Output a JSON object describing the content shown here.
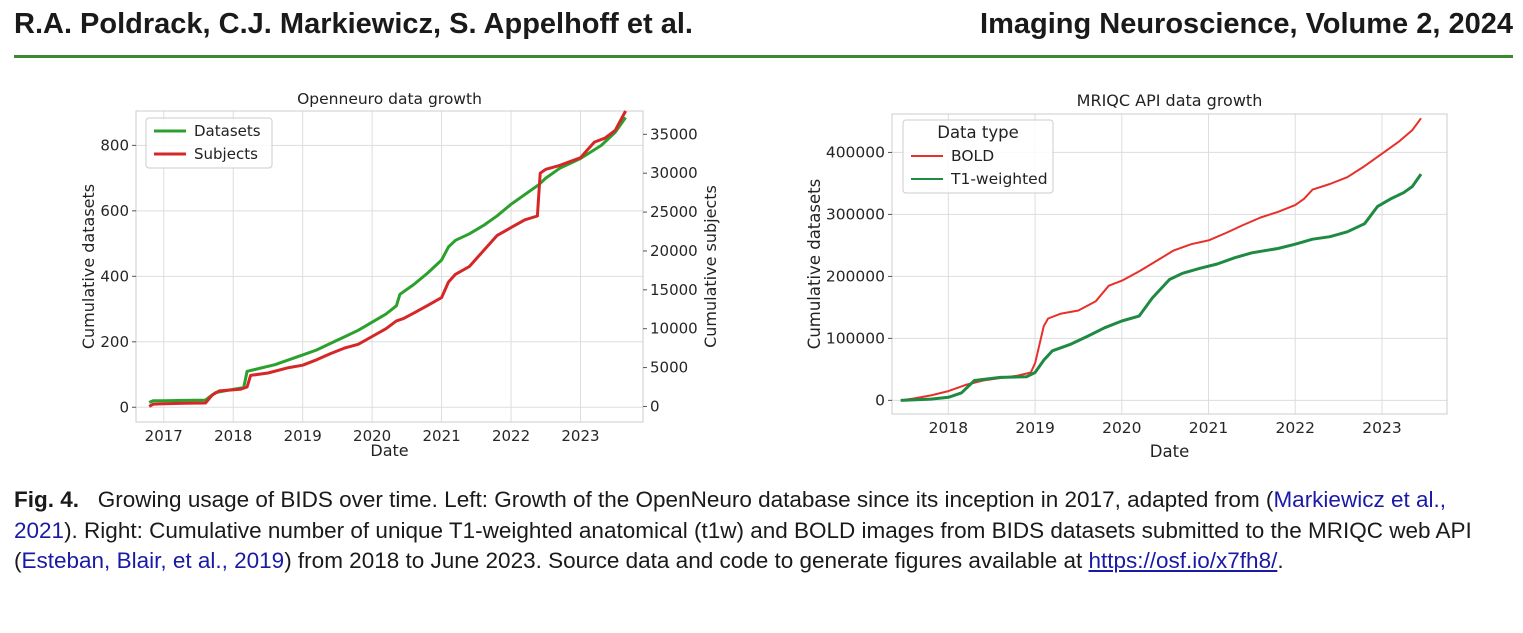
{
  "header": {
    "authors": "R.A. Poldrack, C.J. Markiewicz, S. Appelhoff et al.",
    "journal": "Imaging Neuroscience, Volume 2, 2024"
  },
  "caption": {
    "label": "Fig. 4.",
    "text1": "Growing usage of BIDS over time. Left: Growth of the OpenNeuro database since its inception in 2017, adapted from (",
    "ref1": "Markiewicz et al., 2021",
    "text2": "). Right: Cumulative number of unique T1-weighted anatomical (t1w) and BOLD images from BIDS datasets submitted to the MRIQC web API (",
    "ref2": "Esteban, Blair, et al., 2019",
    "text3": ") from 2018 to June 2023. Source data and code to generate figures available at ",
    "url": "https://osf.io/x7fh8/",
    "text4": "."
  },
  "chart_data": [
    {
      "type": "line",
      "title": "Openneuro data growth",
      "xlabel": "Date",
      "ylabel": "Cumulative datasets",
      "y2label": "Cumulative subjects",
      "xlim": [
        2016.6,
        2023.9
      ],
      "ylim": [
        -45,
        905
      ],
      "y2lim": [
        -2000,
        38000
      ],
      "xticks": [
        2017,
        2018,
        2019,
        2020,
        2021,
        2022,
        2023
      ],
      "yticks": [
        0,
        200,
        400,
        600,
        800
      ],
      "y2ticks": [
        0,
        5000,
        10000,
        15000,
        20000,
        25000,
        30000,
        35000
      ],
      "grid": true,
      "legend": "top-left",
      "series": [
        {
          "name": "Datasets",
          "color": "#2ca02c",
          "axis": "left",
          "x": [
            2016.79,
            2016.85,
            2017.0,
            2017.3,
            2017.6,
            2017.65,
            2017.75,
            2018.0,
            2018.15,
            2018.2,
            2018.4,
            2018.6,
            2018.8,
            2019.0,
            2019.2,
            2019.4,
            2019.6,
            2019.8,
            2020.0,
            2020.2,
            2020.35,
            2020.4,
            2020.6,
            2020.8,
            2021.0,
            2021.1,
            2021.2,
            2021.4,
            2021.6,
            2021.8,
            2022.0,
            2022.2,
            2022.4,
            2022.5,
            2022.7,
            2023.0,
            2023.3,
            2023.5,
            2023.65
          ],
          "y": [
            15,
            20,
            20,
            21,
            22,
            30,
            45,
            55,
            60,
            110,
            120,
            130,
            145,
            160,
            175,
            195,
            215,
            235,
            260,
            285,
            310,
            345,
            375,
            410,
            450,
            490,
            510,
            530,
            555,
            585,
            620,
            650,
            680,
            700,
            730,
            760,
            800,
            840,
            885
          ]
        },
        {
          "name": "Subjects",
          "color": "#d62728",
          "axis": "right",
          "x": [
            2016.79,
            2016.85,
            2017.0,
            2017.3,
            2017.6,
            2017.7,
            2017.8,
            2018.1,
            2018.2,
            2018.25,
            2018.5,
            2018.8,
            2019.0,
            2019.2,
            2019.4,
            2019.6,
            2019.8,
            2020.0,
            2020.2,
            2020.35,
            2020.45,
            2020.6,
            2020.8,
            2021.0,
            2021.1,
            2021.2,
            2021.4,
            2021.6,
            2021.8,
            2022.0,
            2022.2,
            2022.38,
            2022.42,
            2022.5,
            2022.7,
            2023.0,
            2023.1,
            2023.2,
            2023.35,
            2023.5,
            2023.65
          ],
          "y": [
            0,
            300,
            350,
            400,
            450,
            1500,
            2000,
            2200,
            2500,
            4000,
            4300,
            5000,
            5300,
            6000,
            6800,
            7500,
            8000,
            9000,
            10000,
            11000,
            11300,
            12000,
            13000,
            14000,
            16000,
            17000,
            18000,
            20000,
            22000,
            23000,
            24000,
            24500,
            30000,
            30500,
            31000,
            32000,
            33000,
            34000,
            34500,
            35500,
            38000
          ]
        }
      ]
    },
    {
      "type": "line",
      "title": "MRIQC API data growth",
      "xlabel": "Date",
      "ylabel": "Cumulative datasets",
      "xlim": [
        2017.35,
        2023.75
      ],
      "ylim": [
        -22000,
        462000
      ],
      "xticks": [
        2018,
        2019,
        2020,
        2021,
        2022,
        2023
      ],
      "yticks": [
        0,
        100000,
        200000,
        300000,
        400000
      ],
      "grid": true,
      "legend": "top-left",
      "legend_title": "Data type",
      "series": [
        {
          "name": "BOLD",
          "color": "#e8302a",
          "x": [
            2017.45,
            2017.6,
            2017.8,
            2018.0,
            2018.2,
            2018.4,
            2018.6,
            2018.8,
            2018.95,
            2019.0,
            2019.1,
            2019.15,
            2019.3,
            2019.5,
            2019.7,
            2019.85,
            2020.0,
            2020.2,
            2020.4,
            2020.6,
            2020.8,
            2021.0,
            2021.2,
            2021.4,
            2021.6,
            2021.8,
            2022.0,
            2022.1,
            2022.2,
            2022.4,
            2022.6,
            2022.8,
            2023.0,
            2023.2,
            2023.35,
            2023.45
          ],
          "y": [
            0,
            3000,
            8000,
            15000,
            25000,
            32000,
            36000,
            40000,
            45000,
            60000,
            120000,
            132000,
            140000,
            145000,
            160000,
            185000,
            193000,
            208000,
            225000,
            242000,
            252000,
            258000,
            270000,
            283000,
            295000,
            304000,
            315000,
            325000,
            340000,
            349000,
            360000,
            378000,
            398000,
            418000,
            436000,
            455000
          ]
        },
        {
          "name": "T1-weighted",
          "color": "#1e8a42",
          "x": [
            2017.45,
            2017.8,
            2018.0,
            2018.15,
            2018.3,
            2018.6,
            2018.9,
            2019.0,
            2019.1,
            2019.2,
            2019.4,
            2019.6,
            2019.8,
            2020.0,
            2020.2,
            2020.35,
            2020.55,
            2020.7,
            2020.9,
            2021.1,
            2021.3,
            2021.5,
            2021.8,
            2022.0,
            2022.2,
            2022.4,
            2022.6,
            2022.8,
            2022.95,
            2023.1,
            2023.25,
            2023.35,
            2023.45
          ],
          "y": [
            0,
            2000,
            5000,
            12000,
            32000,
            37000,
            38000,
            45000,
            65000,
            80000,
            90000,
            103000,
            117000,
            128000,
            136000,
            165000,
            195000,
            205000,
            213000,
            220000,
            230000,
            238000,
            245000,
            252000,
            260000,
            264000,
            272000,
            285000,
            313000,
            325000,
            335000,
            345000,
            365000
          ]
        }
      ]
    }
  ]
}
